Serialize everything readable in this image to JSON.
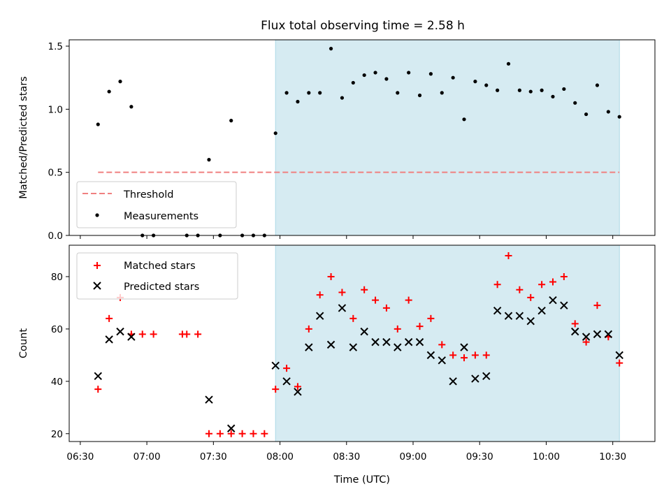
{
  "title": "Flux total observing time = 2.58 h",
  "colors": {
    "shade": "#add8e6",
    "threshold": "#f08080",
    "matched": "#ff0000",
    "predicted": "#000000",
    "measurement": "#000000"
  },
  "chart_data": [
    {
      "type": "scatter",
      "ylabel": "Matched/Predicted stars",
      "xlim": [
        "06:25",
        "10:49"
      ],
      "ylim": [
        0,
        1.55
      ],
      "yticks": [
        0.0,
        0.5,
        1.0,
        1.5
      ],
      "shaded_span": [
        "07:58",
        "10:33"
      ],
      "threshold": {
        "name": "Threshold",
        "y": 0.5,
        "x_start": "06:38",
        "x_end": "10:33"
      },
      "legend": "lower left",
      "series": [
        {
          "name": "Measurements",
          "points": [
            [
              "06:38",
              0.88
            ],
            [
              "06:43",
              1.14
            ],
            [
              "06:48",
              1.22
            ],
            [
              "06:53",
              1.02
            ],
            [
              "06:58",
              0.0
            ],
            [
              "07:03",
              0.0
            ],
            [
              "07:18",
              0.0
            ],
            [
              "07:23",
              0.0
            ],
            [
              "07:28",
              0.6
            ],
            [
              "07:33",
              0.0
            ],
            [
              "07:38",
              0.91
            ],
            [
              "07:43",
              0.0
            ],
            [
              "07:48",
              0.0
            ],
            [
              "07:53",
              0.0
            ],
            [
              "07:58",
              0.81
            ],
            [
              "08:03",
              1.13
            ],
            [
              "08:08",
              1.06
            ],
            [
              "08:13",
              1.13
            ],
            [
              "08:18",
              1.13
            ],
            [
              "08:23",
              1.48
            ],
            [
              "08:28",
              1.09
            ],
            [
              "08:33",
              1.21
            ],
            [
              "08:38",
              1.27
            ],
            [
              "08:43",
              1.29
            ],
            [
              "08:48",
              1.24
            ],
            [
              "08:53",
              1.13
            ],
            [
              "08:58",
              1.29
            ],
            [
              "09:03",
              1.11
            ],
            [
              "09:08",
              1.28
            ],
            [
              "09:13",
              1.13
            ],
            [
              "09:18",
              1.25
            ],
            [
              "09:23",
              0.92
            ],
            [
              "09:28",
              1.22
            ],
            [
              "09:33",
              1.19
            ],
            [
              "09:38",
              1.15
            ],
            [
              "09:43",
              1.36
            ],
            [
              "09:48",
              1.15
            ],
            [
              "09:53",
              1.14
            ],
            [
              "09:58",
              1.15
            ],
            [
              "10:03",
              1.1
            ],
            [
              "10:08",
              1.16
            ],
            [
              "10:13",
              1.05
            ],
            [
              "10:18",
              0.96
            ],
            [
              "10:23",
              1.19
            ],
            [
              "10:28",
              0.98
            ],
            [
              "10:33",
              0.94
            ]
          ]
        }
      ]
    },
    {
      "type": "scatter",
      "ylabel": "Count",
      "xlabel": "Time (UTC)",
      "xlim": [
        "06:25",
        "10:49"
      ],
      "ylim": [
        17,
        92
      ],
      "yticks": [
        20,
        40,
        60,
        80
      ],
      "xticks": [
        "06:30",
        "07:00",
        "07:30",
        "08:00",
        "08:30",
        "09:00",
        "09:30",
        "10:00",
        "10:30"
      ],
      "shaded_span": [
        "07:58",
        "10:33"
      ],
      "legend": "upper left",
      "series": [
        {
          "name": "Matched stars",
          "marker": "+",
          "points": [
            [
              "06:38",
              37
            ],
            [
              "06:43",
              64
            ],
            [
              "06:48",
              72
            ],
            [
              "06:53",
              58
            ],
            [
              "06:58",
              58
            ],
            [
              "07:03",
              58
            ],
            [
              "07:16",
              58
            ],
            [
              "07:18",
              58
            ],
            [
              "07:23",
              58
            ],
            [
              "07:28",
              20
            ],
            [
              "07:33",
              20
            ],
            [
              "07:38",
              20
            ],
            [
              "07:43",
              20
            ],
            [
              "07:48",
              20
            ],
            [
              "07:53",
              20
            ],
            [
              "07:58",
              37
            ],
            [
              "08:03",
              45
            ],
            [
              "08:08",
              38
            ],
            [
              "08:13",
              60
            ],
            [
              "08:18",
              73
            ],
            [
              "08:23",
              80
            ],
            [
              "08:28",
              74
            ],
            [
              "08:33",
              64
            ],
            [
              "08:38",
              75
            ],
            [
              "08:43",
              71
            ],
            [
              "08:48",
              68
            ],
            [
              "08:53",
              60
            ],
            [
              "08:58",
              71
            ],
            [
              "09:03",
              61
            ],
            [
              "09:08",
              64
            ],
            [
              "09:13",
              54
            ],
            [
              "09:18",
              50
            ],
            [
              "09:23",
              49
            ],
            [
              "09:28",
              50
            ],
            [
              "09:33",
              50
            ],
            [
              "09:38",
              77
            ],
            [
              "09:43",
              88
            ],
            [
              "09:48",
              75
            ],
            [
              "09:53",
              72
            ],
            [
              "09:58",
              77
            ],
            [
              "10:03",
              78
            ],
            [
              "10:08",
              80
            ],
            [
              "10:13",
              62
            ],
            [
              "10:18",
              55
            ],
            [
              "10:23",
              69
            ],
            [
              "10:28",
              57
            ],
            [
              "10:33",
              47
            ]
          ]
        },
        {
          "name": "Predicted stars",
          "marker": "x",
          "points": [
            [
              "06:38",
              42
            ],
            [
              "06:43",
              56
            ],
            [
              "06:48",
              59
            ],
            [
              "06:53",
              57
            ],
            [
              "07:28",
              33
            ],
            [
              "07:38",
              22
            ],
            [
              "07:58",
              46
            ],
            [
              "08:03",
              40
            ],
            [
              "08:08",
              36
            ],
            [
              "08:13",
              53
            ],
            [
              "08:18",
              65
            ],
            [
              "08:23",
              54
            ],
            [
              "08:28",
              68
            ],
            [
              "08:33",
              53
            ],
            [
              "08:38",
              59
            ],
            [
              "08:43",
              55
            ],
            [
              "08:48",
              55
            ],
            [
              "08:53",
              53
            ],
            [
              "08:58",
              55
            ],
            [
              "09:03",
              55
            ],
            [
              "09:08",
              50
            ],
            [
              "09:13",
              48
            ],
            [
              "09:18",
              40
            ],
            [
              "09:23",
              53
            ],
            [
              "09:28",
              41
            ],
            [
              "09:33",
              42
            ],
            [
              "09:38",
              67
            ],
            [
              "09:43",
              65
            ],
            [
              "09:48",
              65
            ],
            [
              "09:53",
              63
            ],
            [
              "09:58",
              67
            ],
            [
              "10:03",
              71
            ],
            [
              "10:08",
              69
            ],
            [
              "10:13",
              59
            ],
            [
              "10:18",
              57
            ],
            [
              "10:23",
              58
            ],
            [
              "10:28",
              58
            ],
            [
              "10:33",
              50
            ]
          ]
        }
      ]
    }
  ]
}
